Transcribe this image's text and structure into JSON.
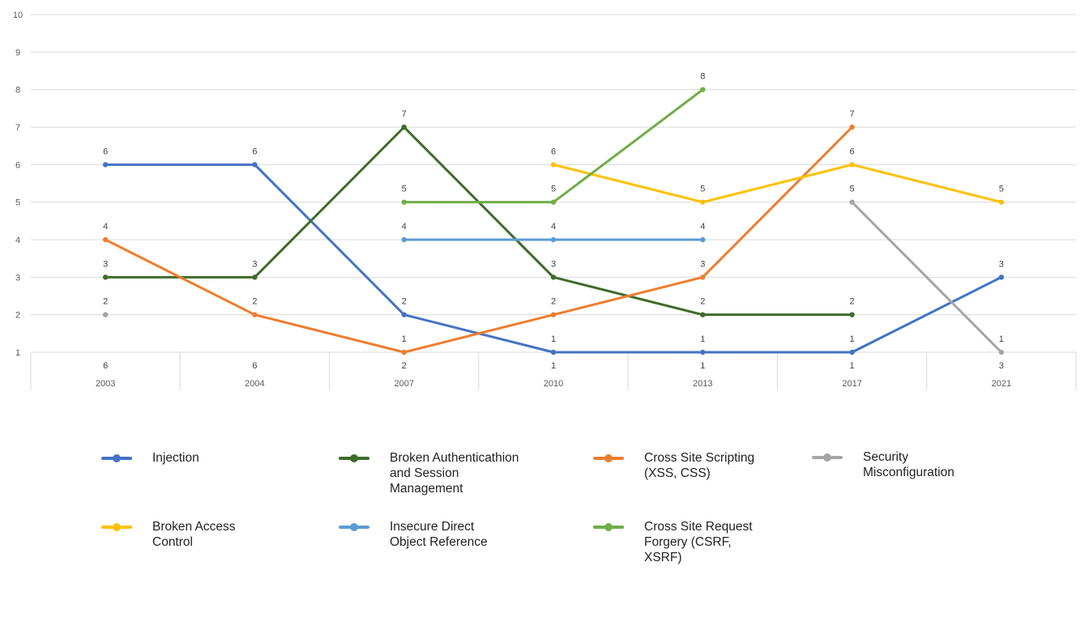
{
  "chart_data": {
    "type": "line",
    "categories": [
      "2003",
      "2004",
      "2007",
      "2010",
      "2013",
      "2017",
      "2021"
    ],
    "ylim": [
      1,
      10
    ],
    "yticks": [
      1,
      2,
      3,
      4,
      5,
      6,
      7,
      8,
      9,
      10
    ],
    "grid": true,
    "legend_position": "bottom",
    "data_table_row": [
      6,
      6,
      2,
      1,
      1,
      1,
      3
    ],
    "series": [
      {
        "name": "Injection",
        "color": "#4472C4",
        "values": [
          6,
          6,
          2,
          1,
          1,
          1,
          3
        ]
      },
      {
        "name": "Broken Authenticathion and Session Management",
        "color": "#3F6B2A",
        "values": [
          3,
          3,
          7,
          3,
          2,
          2,
          null
        ]
      },
      {
        "name": "Cross Site Scripting (XSS, CSS)",
        "color": "#ED7D31",
        "values": [
          4,
          2,
          1,
          2,
          3,
          7,
          null
        ]
      },
      {
        "name": "Security Misconfiguration",
        "color": "#A5A5A5",
        "values": [
          2,
          null,
          null,
          null,
          null,
          5,
          1
        ]
      },
      {
        "name": "Broken Access Control",
        "color": "#FFC000",
        "values": [
          null,
          null,
          null,
          6,
          5,
          6,
          5
        ]
      },
      {
        "name": "Insecure Direct Object Reference",
        "color": "#5B9BD5",
        "values": [
          null,
          null,
          4,
          4,
          4,
          null,
          null
        ]
      },
      {
        "name": "Cross Site Request Forgery (CSRF, XSRF)",
        "color": "#70AD47",
        "values": [
          null,
          null,
          5,
          5,
          8,
          null,
          null
        ]
      }
    ]
  },
  "legend": [
    {
      "label": "Injection"
    },
    {
      "label": "Broken Authenticathion\nand Session\nManagement"
    },
    {
      "label": "Cross Site Scripting\n(XSS, CSS)"
    },
    {
      "label": "Security\nMisconfiguration"
    },
    {
      "label": "Broken Access\nControl"
    },
    {
      "label": "Insecure Direct\nObject Reference"
    },
    {
      "label": "Cross Site Request\nForgery (CSRF,\nXSRF)"
    }
  ]
}
